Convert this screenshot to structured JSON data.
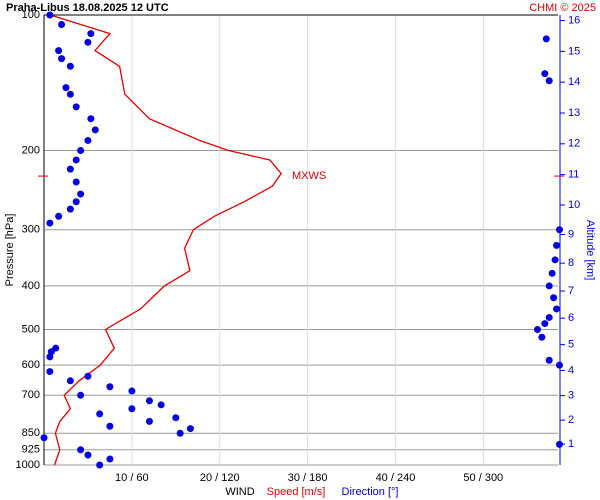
{
  "chart_data": {
    "type": "line",
    "title": "Praha-Libus    18.08.2025 12 UTC",
    "credit": "CHMI © 2025",
    "y_label": "Pressure [hPa]",
    "y2_label": "Altitude [km]",
    "x_label": "WIND",
    "x_label_speed": "Speed [m/s]",
    "x_label_direction": "Direction [°]",
    "ylim": [
      1000,
      100
    ],
    "log_y": true,
    "yticks": [
      100,
      200,
      300,
      400,
      500,
      600,
      700,
      850,
      925,
      1000
    ],
    "y2ticks": [
      1,
      2,
      3,
      4,
      5,
      6,
      7,
      8,
      9,
      10,
      11,
      12,
      13,
      14,
      15,
      16
    ],
    "xlim": [
      0,
      58.5
    ],
    "x2lim": [
      0,
      351
    ],
    "xticks": [
      {
        "value": 10,
        "label": "10 / 60"
      },
      {
        "value": 20,
        "label": "20 / 120"
      },
      {
        "value": 30,
        "label": "30 / 180"
      },
      {
        "value": 40,
        "label": "40 / 240"
      },
      {
        "value": 50,
        "label": "50 / 300"
      }
    ],
    "grid": true,
    "annotation": {
      "label": "MXWS",
      "pressure": 228
    },
    "series": [
      {
        "name": "Speed [m/s]",
        "color": "#e00000",
        "y": [
          1000,
          925,
          850,
          800,
          750,
          700,
          650,
          600,
          550,
          500,
          450,
          400,
          370,
          330,
          300,
          280,
          260,
          240,
          225,
          210,
          200,
          190,
          170,
          150,
          130,
          120,
          110,
          100
        ],
        "values": [
          1.2,
          1.8,
          1.3,
          1.8,
          3,
          2.3,
          4,
          6.4,
          8,
          7,
          11,
          13.7,
          16.6,
          16,
          17,
          19.4,
          22.8,
          26,
          27,
          25.7,
          21,
          17.7,
          12,
          9.2,
          8.6,
          5.8,
          7.5,
          0.7
        ]
      },
      {
        "name": "Direction [°]",
        "color": "#0000e0",
        "axis": "x2",
        "y": [
          1000,
          970,
          950,
          925,
          900,
          870,
          850,
          830,
          820,
          800,
          785,
          770,
          750,
          735,
          720,
          700,
          685,
          670,
          650,
          635,
          620,
          600,
          585,
          575,
          560,
          550,
          520,
          500,
          485,
          470,
          450,
          425,
          400,
          375,
          350,
          325,
          300,
          290,
          280,
          270,
          260,
          250,
          235,
          220,
          210,
          200,
          190,
          180,
          170,
          160,
          150,
          145,
          140,
          135,
          130,
          125,
          120,
          115,
          113,
          110,
          105,
          100
        ],
        "values": [
          38,
          45,
          30,
          25,
          352,
          0,
          93,
          100,
          45,
          72,
          90,
          38,
          60,
          80,
          72,
          25,
          60,
          45,
          18,
          30,
          4,
          352,
          345,
          4,
          5,
          8,
          340,
          337,
          342,
          345,
          350,
          348,
          345,
          347,
          349,
          350,
          352,
          4,
          10,
          18,
          22,
          25,
          22,
          18,
          22,
          25,
          30,
          35,
          32,
          22,
          18,
          15,
          345,
          342,
          18,
          12,
          10,
          30,
          343,
          32,
          12,
          4
        ]
      }
    ]
  }
}
